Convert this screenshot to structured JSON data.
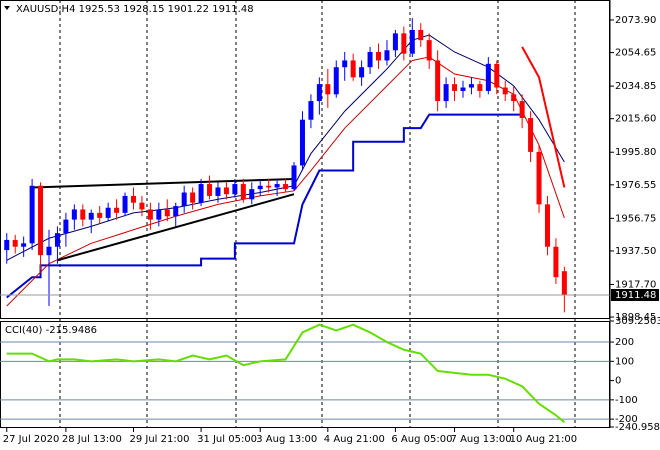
{
  "chart_data": [
    {
      "type": "candlestick",
      "title": "XAUUSD,H4  1925.53 1928.15 1901.22 1911.48",
      "xlim": [
        -0.8,
        71.4
      ],
      "ylim": [
        1897.9,
        2085.7
      ],
      "yticks": [
        {
          "value": 2073.9,
          "label": "2073.90"
        },
        2054.65,
        2034.85,
        {
          "value": 2015.6,
          "label": "2015.60"
        },
        {
          "value": 1995.8,
          "label": "1995.80"
        },
        1976.55,
        1956.75,
        {
          "value": 1937.5,
          "label": "1937.50"
        },
        {
          "value": 1917.7,
          "label": "1917.70"
        },
        1898.45
      ],
      "xticks": [
        {
          "value": 0,
          "label": "27 Jul 2020"
        },
        {
          "value": 7,
          "label": "28 Jul 13:00"
        },
        {
          "value": 15,
          "label": "29 Jul 21:00"
        },
        {
          "value": 23,
          "label": "31 Jul 05:00"
        },
        {
          "value": 30,
          "label": "3 Aug 13:00"
        },
        {
          "value": 38,
          "label": "4 Aug 21:00"
        },
        {
          "value": 46,
          "label": "6 Aug 05:00"
        },
        {
          "value": 53,
          "label": "7 Aug 13:00"
        },
        {
          "value": 60,
          "label": "10 Aug 21:00"
        }
      ],
      "up_color": "#0000ff",
      "down_color": "#ff0000",
      "open": [
        1938,
        1944,
        1940,
        1942,
        1976,
        1935,
        1940,
        1948,
        1956,
        1962,
        1956,
        1960,
        1957,
        1963,
        1960,
        1970,
        1966,
        1962,
        1956,
        1962,
        1958,
        1964,
        1972,
        1966,
        1977,
        1970,
        1975,
        1971,
        1977,
        1968,
        1974,
        1976,
        1975,
        1977,
        1974,
        1988,
        2015,
        2026,
        2036,
        2030,
        2046,
        2050,
        2040,
        2046,
        2055,
        2050,
        2056,
        2066,
        2054,
        2068,
        2062,
        2050,
        2026,
        2036,
        2032,
        2034,
        2036,
        2032,
        2048,
        2034,
        2030,
        2026,
        2016,
        1996,
        1965,
        1940,
        1925.53
      ],
      "high": [
        1948,
        1947,
        1946,
        1980,
        1978,
        1950,
        1952,
        1960,
        1965,
        1965,
        1962,
        1964,
        1966,
        1968,
        1972,
        1975,
        1970,
        1966,
        1966,
        1968,
        1966,
        1976,
        1975,
        1980,
        1982,
        1978,
        1978,
        1980,
        1980,
        1978,
        1980,
        1980,
        1980,
        1980,
        1990,
        2020,
        2030,
        2040,
        2045,
        2050,
        2055,
        2054,
        2050,
        2058,
        2060,
        2062,
        2068,
        2070,
        2075,
        2072,
        2066,
        2056,
        2040,
        2040,
        2038,
        2040,
        2038,
        2052,
        2050,
        2038,
        2035,
        2030,
        2020,
        2000,
        1970,
        1945,
        1928.15
      ],
      "low": [
        1930,
        1936,
        1934,
        1938,
        1926,
        1905,
        1930,
        1940,
        1950,
        1952,
        1948,
        1954,
        1955,
        1956,
        1958,
        1962,
        1958,
        1950,
        1952,
        1955,
        1952,
        1960,
        1962,
        1964,
        1968,
        1966,
        1968,
        1969,
        1966,
        1965,
        1970,
        1972,
        1970,
        1972,
        1973,
        1985,
        2010,
        2018,
        2022,
        2028,
        2038,
        2038,
        2035,
        2042,
        2045,
        2047,
        2052,
        2050,
        2052,
        2058,
        2045,
        2020,
        2022,
        2026,
        2028,
        2030,
        2028,
        2030,
        2030,
        2026,
        2020,
        2010,
        1990,
        1960,
        1935,
        1918,
        1901.22
      ],
      "close": [
        1944,
        1940,
        1942,
        1976,
        1935,
        1940,
        1948,
        1956,
        1962,
        1956,
        1960,
        1957,
        1963,
        1960,
        1970,
        1966,
        1962,
        1956,
        1962,
        1958,
        1964,
        1972,
        1966,
        1977,
        1970,
        1975,
        1971,
        1977,
        1968,
        1974,
        1976,
        1975,
        1977,
        1974,
        1988,
        2015,
        2026,
        2036,
        2030,
        2046,
        2050,
        2040,
        2046,
        2055,
        2050,
        2056,
        2066,
        2054,
        2068,
        2062,
        2050,
        2026,
        2036,
        2032,
        2034,
        2036,
        2032,
        2048,
        2034,
        2030,
        2026,
        2016,
        1996,
        1965,
        1940,
        1922,
        1911.48
      ],
      "lines": [
        {
          "color": "#0000cc",
          "width": 2,
          "x": [
            0,
            3,
            4,
            4,
            23,
            23,
            27,
            27,
            34,
            35,
            37,
            41,
            41,
            47,
            47,
            49,
            50,
            61
          ],
          "values": [
            1910,
            1922,
            1922,
            1929,
            1929,
            1933,
            1933,
            1942,
            1942,
            1965,
            1985,
            1985,
            2002,
            2002,
            2010,
            2010,
            2018,
            2018
          ]
        },
        {
          "color": "#000066",
          "width": 1,
          "x": [
            0,
            5,
            10,
            15,
            20,
            25,
            30,
            34,
            36,
            40,
            45,
            48,
            50,
            53,
            57,
            60,
            63,
            66
          ],
          "values": [
            1932,
            1945,
            1952,
            1960,
            1963,
            1968,
            1972,
            1976,
            1995,
            2020,
            2045,
            2062,
            2065,
            2055,
            2046,
            2035,
            2015,
            1990
          ]
        },
        {
          "color": "#cc0000",
          "width": 1,
          "x": [
            0,
            5,
            10,
            15,
            20,
            25,
            30,
            34,
            36,
            40,
            45,
            48,
            50,
            53,
            57,
            60,
            63,
            66
          ],
          "values": [
            1905,
            1930,
            1942,
            1950,
            1958,
            1965,
            1970,
            1973,
            1985,
            2010,
            2035,
            2050,
            2052,
            2042,
            2038,
            2030,
            2000,
            1957
          ]
        },
        {
          "color": "#ff0000",
          "width": 2,
          "x": [
            61,
            63,
            66
          ],
          "values": [
            2058,
            2040,
            1975
          ]
        },
        {
          "color": "#000000",
          "width": 2,
          "x": [
            3,
            34
          ],
          "values": [
            1975,
            1980
          ]
        },
        {
          "color": "#000000",
          "width": 2,
          "x": [
            6,
            34
          ],
          "values": [
            1932,
            1971
          ]
        }
      ],
      "last_price": 1911.48
    },
    {
      "type": "line",
      "title": "CCI(40) -215.9486",
      "color": "#66dd00",
      "xlim": [
        -0.8,
        71.4
      ],
      "ylim": [
        -240.9581,
        309.2503
      ],
      "yticks": [
        309.2503,
        200,
        100,
        0,
        -100,
        -200,
        -240.9581
      ],
      "levels": [
        200,
        100,
        -100,
        -200
      ],
      "x": [
        0,
        3,
        5,
        6,
        8,
        10,
        13,
        15,
        18,
        20,
        22,
        24,
        26,
        28,
        30,
        33,
        35,
        37,
        39,
        41,
        43,
        45,
        47,
        49,
        51,
        53,
        55,
        57,
        59,
        61,
        63,
        65,
        66
      ],
      "values": [
        140,
        140,
        100,
        110,
        110,
        100,
        110,
        100,
        110,
        100,
        130,
        110,
        130,
        80,
        100,
        110,
        250,
        290,
        260,
        290,
        250,
        200,
        160,
        140,
        50,
        40,
        30,
        30,
        10,
        -30,
        -120,
        -180,
        -215.9486
      ]
    }
  ]
}
